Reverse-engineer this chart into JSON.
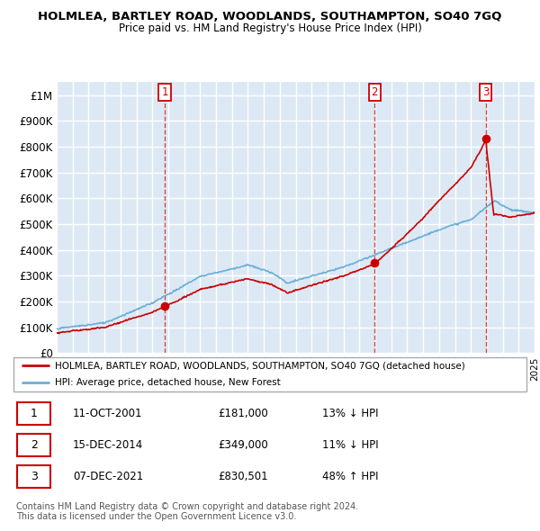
{
  "title": "HOLMLEA, BARTLEY ROAD, WOODLANDS, SOUTHAMPTON, SO40 7GQ",
  "subtitle": "Price paid vs. HM Land Registry's House Price Index (HPI)",
  "ylim": [
    0,
    1050000
  ],
  "yticks": [
    0,
    100000,
    200000,
    300000,
    400000,
    500000,
    600000,
    700000,
    800000,
    900000,
    1000000
  ],
  "ytick_labels": [
    "£0",
    "£100K",
    "£200K",
    "£300K",
    "£400K",
    "£500K",
    "£600K",
    "£700K",
    "£800K",
    "£900K",
    "£1M"
  ],
  "background_color": "#ffffff",
  "plot_bg_color": "#dce9f5",
  "grid_color": "#ffffff",
  "hpi_color": "#6baed6",
  "price_color": "#cc0000",
  "sale_marker_color": "#cc0000",
  "transaction_label_color": "#cc0000",
  "legend_border_color": "#aaaaaa",
  "sales_years": [
    2001.79,
    2014.96,
    2021.93
  ],
  "sales_prices": [
    181000,
    349000,
    830501
  ],
  "sales_labels": [
    "1",
    "2",
    "3"
  ],
  "table_rows": [
    {
      "num": "1",
      "date": "11-OCT-2001",
      "price": "£181,000",
      "hpi_diff": "13% ↓ HPI"
    },
    {
      "num": "2",
      "date": "15-DEC-2014",
      "price": "£349,000",
      "hpi_diff": "11% ↓ HPI"
    },
    {
      "num": "3",
      "date": "07-DEC-2021",
      "price": "£830,501",
      "hpi_diff": "48% ↑ HPI"
    }
  ],
  "footer_line1": "Contains HM Land Registry data © Crown copyright and database right 2024.",
  "footer_line2": "This data is licensed under the Open Government Licence v3.0.",
  "legend_line1": "HOLMLEA, BARTLEY ROAD, WOODLANDS, SOUTHAMPTON, SO40 7GQ (detached house)",
  "legend_line2": "HPI: Average price, detached house, New Forest",
  "x_start_year": 1995,
  "x_end_year": 2025
}
